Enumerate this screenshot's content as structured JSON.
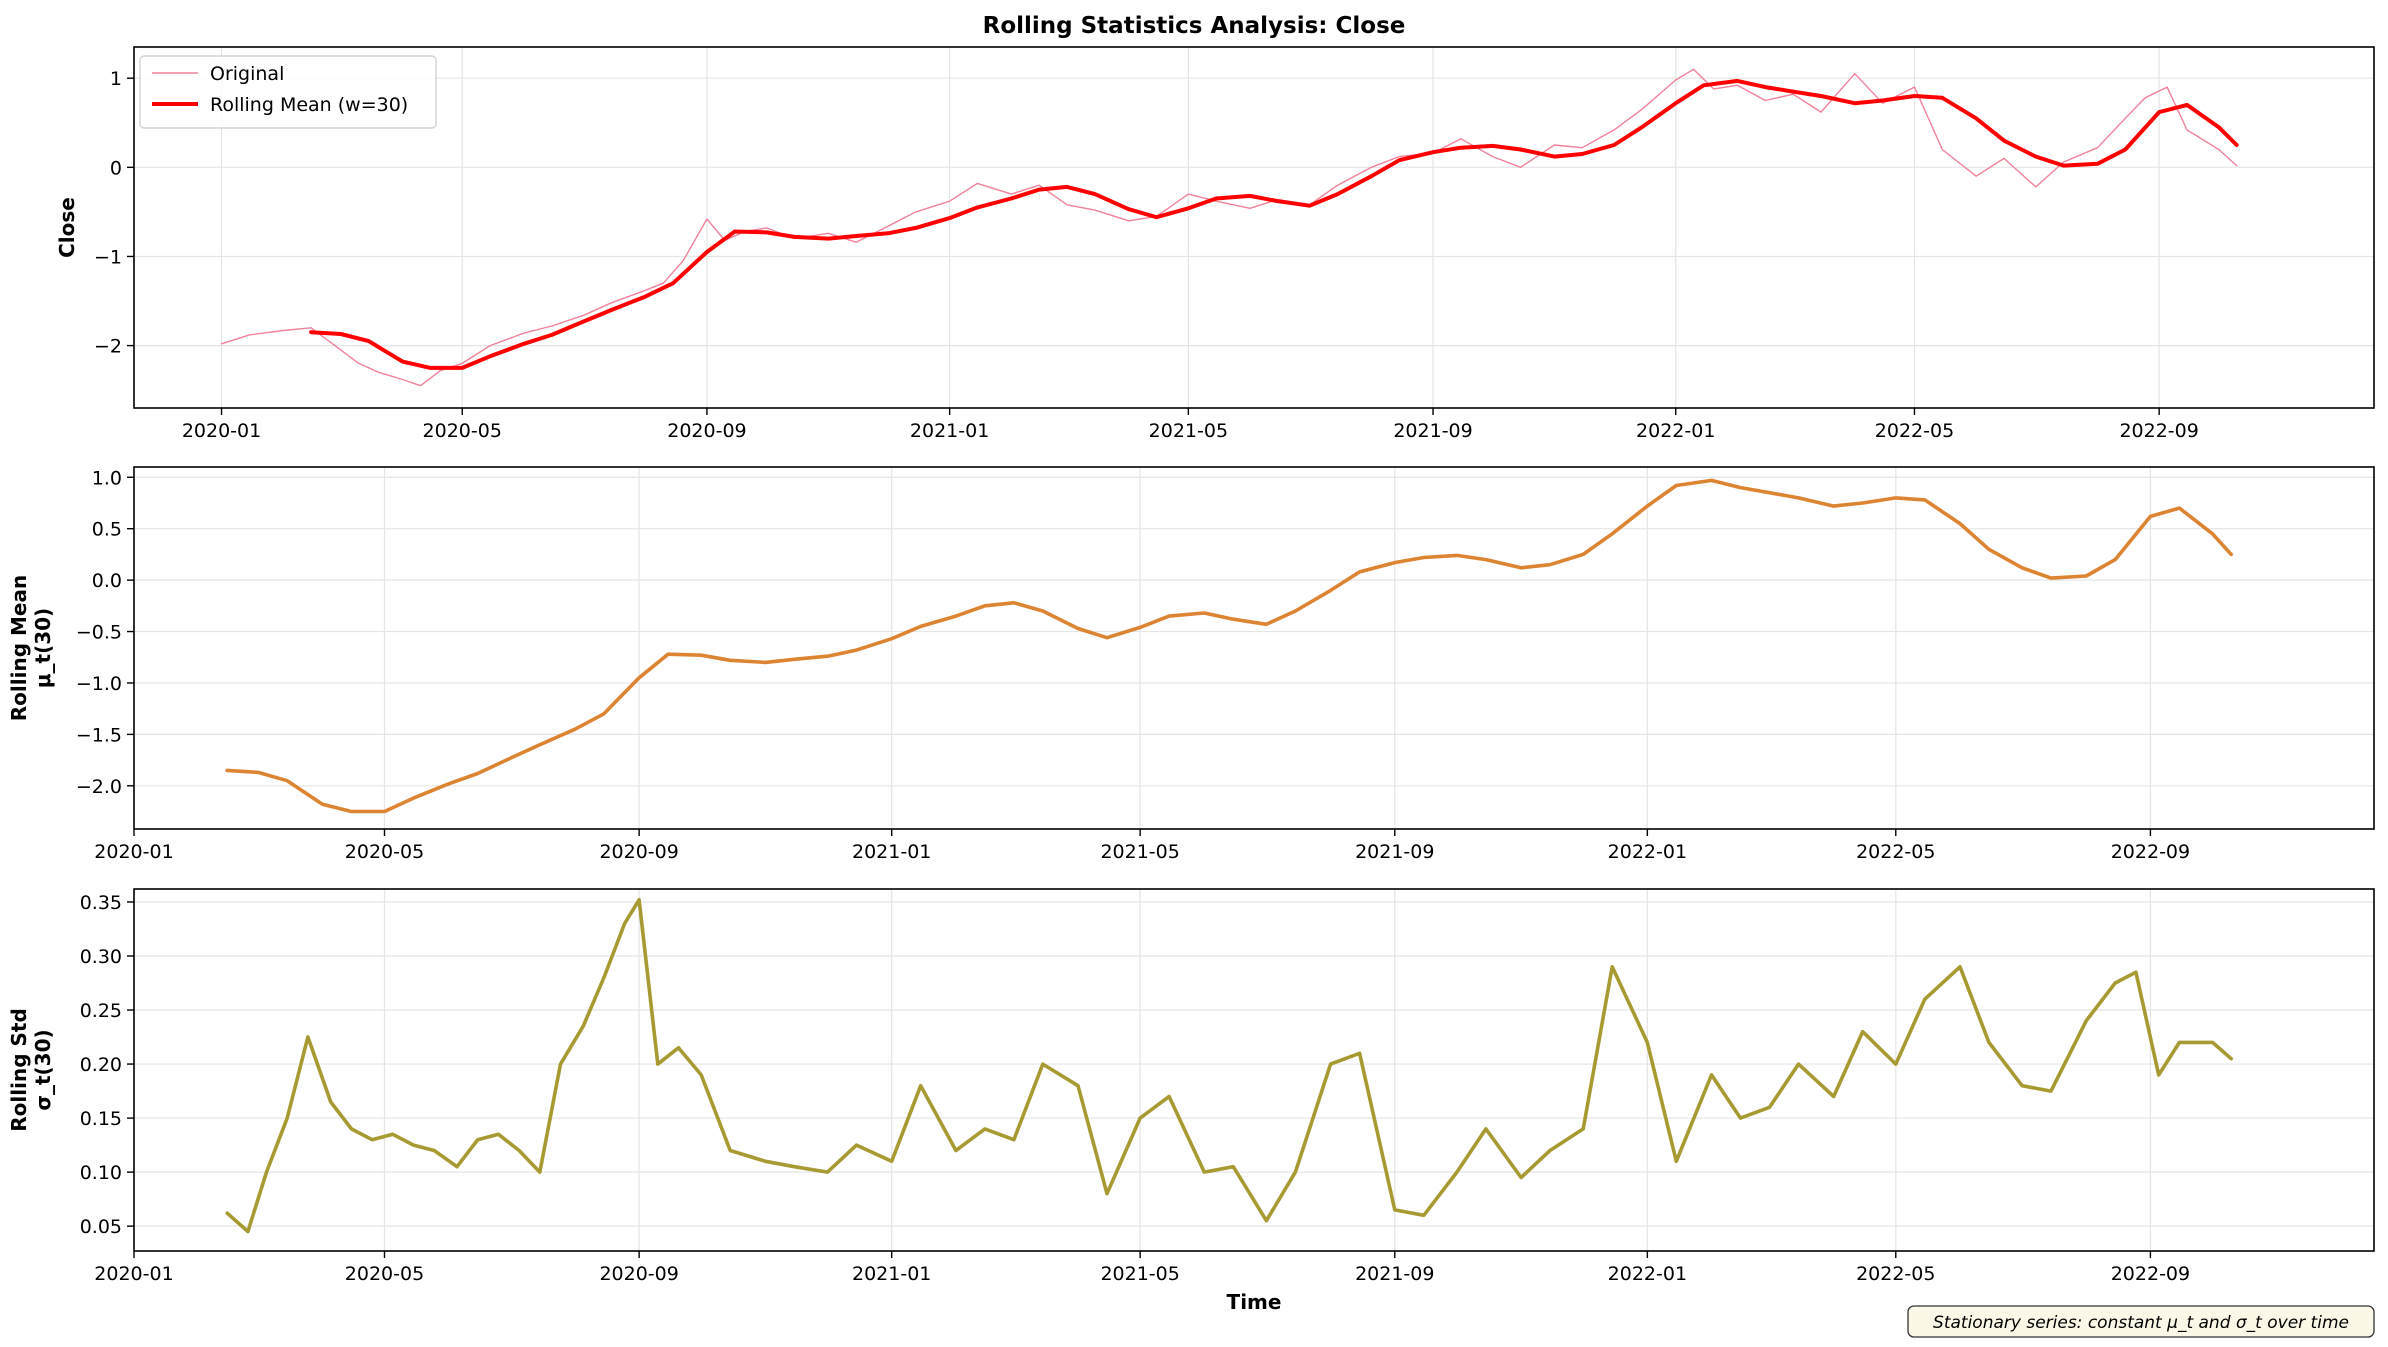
{
  "figure": {
    "title": "Rolling Statistics Analysis: Close",
    "note": "Stationary series: constant μ_t and σ_t over time",
    "colors": {
      "original": "#f0829a",
      "rolling_mean_top": "#ff0000",
      "rolling_mean_mid": "#dd8433",
      "rolling_std": "#a89a32",
      "grid": "#e5e5e5",
      "note_bg": "#fbf8e8"
    }
  },
  "chart_data": [
    {
      "type": "line",
      "ylabel": "Close",
      "xlabel": "",
      "xlim": [
        "2019-11-18",
        "2022-12-18"
      ],
      "ylim": [
        -2.7,
        1.35
      ],
      "xticks": [
        "2020-01",
        "2020-05",
        "2020-09",
        "2021-01",
        "2021-05",
        "2021-09",
        "2022-01",
        "2022-05",
        "2022-09"
      ],
      "yticks": [
        -2,
        -1,
        0,
        1
      ],
      "grid": true,
      "legend": "top-left",
      "series": [
        {
          "name": "Original",
          "x": [
            "2020-01-01",
            "2020-01-15",
            "2020-02-01",
            "2020-02-15",
            "2020-03-01",
            "2020-03-10",
            "2020-03-20",
            "2020-04-01",
            "2020-04-10",
            "2020-04-20",
            "2020-05-01",
            "2020-05-15",
            "2020-06-01",
            "2020-06-15",
            "2020-07-01",
            "2020-07-15",
            "2020-08-01",
            "2020-08-10",
            "2020-08-20",
            "2020-09-01",
            "2020-09-10",
            "2020-09-20",
            "2020-10-01",
            "2020-10-15",
            "2020-11-01",
            "2020-11-15",
            "2020-12-01",
            "2020-12-15",
            "2021-01-01",
            "2021-01-15",
            "2021-02-01",
            "2021-02-15",
            "2021-03-01",
            "2021-03-15",
            "2021-04-01",
            "2021-04-15",
            "2021-05-01",
            "2021-05-15",
            "2021-06-01",
            "2021-06-15",
            "2021-07-01",
            "2021-07-15",
            "2021-08-01",
            "2021-08-15",
            "2021-09-01",
            "2021-09-15",
            "2021-10-01",
            "2021-10-15",
            "2021-11-01",
            "2021-11-15",
            "2021-12-01",
            "2021-12-15",
            "2022-01-01",
            "2022-01-10",
            "2022-01-20",
            "2022-02-01",
            "2022-02-15",
            "2022-03-01",
            "2022-03-15",
            "2022-04-01",
            "2022-04-15",
            "2022-05-01",
            "2022-05-15",
            "2022-06-01",
            "2022-06-15",
            "2022-07-01",
            "2022-07-15",
            "2022-08-01",
            "2022-08-15",
            "2022-08-25",
            "2022-09-05",
            "2022-09-15",
            "2022-10-01",
            "2022-10-10"
          ],
          "values": [
            -1.98,
            -1.88,
            -1.83,
            -1.8,
            -2.05,
            -2.2,
            -2.3,
            -2.38,
            -2.45,
            -2.28,
            -2.2,
            -2.0,
            -1.86,
            -1.78,
            -1.66,
            -1.52,
            -1.38,
            -1.3,
            -1.05,
            -0.58,
            -0.82,
            -0.72,
            -0.68,
            -0.8,
            -0.74,
            -0.84,
            -0.66,
            -0.5,
            -0.38,
            -0.18,
            -0.3,
            -0.2,
            -0.42,
            -0.48,
            -0.6,
            -0.55,
            -0.3,
            -0.38,
            -0.46,
            -0.36,
            -0.42,
            -0.2,
            0.0,
            0.12,
            0.16,
            0.32,
            0.12,
            0.0,
            0.25,
            0.22,
            0.42,
            0.65,
            0.98,
            1.1,
            0.88,
            0.92,
            0.75,
            0.82,
            0.62,
            1.05,
            0.72,
            0.9,
            0.2,
            -0.1,
            0.1,
            -0.22,
            0.06,
            0.22,
            0.55,
            0.78,
            0.9,
            0.42,
            0.2,
            0.02
          ]
        },
        {
          "name": "Rolling Mean (w=30)",
          "x": [
            "2020-02-15",
            "2020-03-01",
            "2020-03-15",
            "2020-04-01",
            "2020-04-15",
            "2020-05-01",
            "2020-05-15",
            "2020-06-01",
            "2020-06-15",
            "2020-07-01",
            "2020-07-15",
            "2020-08-01",
            "2020-08-15",
            "2020-09-01",
            "2020-09-15",
            "2020-10-01",
            "2020-10-15",
            "2020-11-01",
            "2020-11-15",
            "2020-12-01",
            "2020-12-15",
            "2021-01-01",
            "2021-01-15",
            "2021-02-01",
            "2021-02-15",
            "2021-03-01",
            "2021-03-15",
            "2021-04-01",
            "2021-04-15",
            "2021-05-01",
            "2021-05-15",
            "2021-06-01",
            "2021-06-15",
            "2021-07-01",
            "2021-07-15",
            "2021-08-01",
            "2021-08-15",
            "2021-09-01",
            "2021-09-15",
            "2021-10-01",
            "2021-10-15",
            "2021-11-01",
            "2021-11-15",
            "2021-12-01",
            "2021-12-15",
            "2022-01-01",
            "2022-01-15",
            "2022-02-01",
            "2022-02-15",
            "2022-03-01",
            "2022-03-15",
            "2022-04-01",
            "2022-04-15",
            "2022-05-01",
            "2022-05-15",
            "2022-06-01",
            "2022-06-15",
            "2022-07-01",
            "2022-07-15",
            "2022-08-01",
            "2022-08-15",
            "2022-09-01",
            "2022-09-15",
            "2022-10-01",
            "2022-10-10"
          ],
          "values": [
            -1.85,
            -1.87,
            -1.95,
            -2.18,
            -2.25,
            -2.25,
            -2.12,
            -1.98,
            -1.88,
            -1.73,
            -1.6,
            -1.45,
            -1.3,
            -0.95,
            -0.72,
            -0.73,
            -0.78,
            -0.8,
            -0.77,
            -0.74,
            -0.68,
            -0.57,
            -0.45,
            -0.35,
            -0.25,
            -0.22,
            -0.3,
            -0.47,
            -0.56,
            -0.46,
            -0.35,
            -0.32,
            -0.38,
            -0.43,
            -0.3,
            -0.1,
            0.08,
            0.17,
            0.22,
            0.24,
            0.2,
            0.12,
            0.15,
            0.25,
            0.45,
            0.72,
            0.92,
            0.97,
            0.9,
            0.85,
            0.8,
            0.72,
            0.75,
            0.8,
            0.78,
            0.55,
            0.3,
            0.12,
            0.02,
            0.04,
            0.2,
            0.62,
            0.7,
            0.45,
            0.25
          ]
        }
      ]
    },
    {
      "type": "line",
      "ylabel": "Rolling Mean\nμ_t(30)",
      "xlabel": "",
      "xlim": [
        "2020-01-01",
        "2022-12-18"
      ],
      "ylim": [
        -2.42,
        1.1
      ],
      "xticks": [
        "2020-01",
        "2020-05",
        "2020-09",
        "2021-01",
        "2021-05",
        "2021-09",
        "2022-01",
        "2022-05",
        "2022-09"
      ],
      "yticks": [
        -2.0,
        -1.5,
        -1.0,
        -0.5,
        0.0,
        0.5,
        1.0
      ],
      "grid": true,
      "series": [
        {
          "x": [
            "2020-02-15",
            "2020-03-01",
            "2020-03-15",
            "2020-04-01",
            "2020-04-15",
            "2020-05-01",
            "2020-05-15",
            "2020-06-01",
            "2020-06-15",
            "2020-07-01",
            "2020-07-15",
            "2020-08-01",
            "2020-08-15",
            "2020-09-01",
            "2020-09-15",
            "2020-10-01",
            "2020-10-15",
            "2020-11-01",
            "2020-11-15",
            "2020-12-01",
            "2020-12-15",
            "2021-01-01",
            "2021-01-15",
            "2021-02-01",
            "2021-02-15",
            "2021-03-01",
            "2021-03-15",
            "2021-04-01",
            "2021-04-15",
            "2021-05-01",
            "2021-05-15",
            "2021-06-01",
            "2021-06-15",
            "2021-07-01",
            "2021-07-15",
            "2021-08-01",
            "2021-08-15",
            "2021-09-01",
            "2021-09-15",
            "2021-10-01",
            "2021-10-15",
            "2021-11-01",
            "2021-11-15",
            "2021-12-01",
            "2021-12-15",
            "2022-01-01",
            "2022-01-15",
            "2022-02-01",
            "2022-02-15",
            "2022-03-01",
            "2022-03-15",
            "2022-04-01",
            "2022-04-15",
            "2022-05-01",
            "2022-05-15",
            "2022-06-01",
            "2022-06-15",
            "2022-07-01",
            "2022-07-15",
            "2022-08-01",
            "2022-08-15",
            "2022-09-01",
            "2022-09-15",
            "2022-10-01",
            "2022-10-10"
          ],
          "values": [
            -1.85,
            -1.87,
            -1.95,
            -2.18,
            -2.25,
            -2.25,
            -2.12,
            -1.98,
            -1.88,
            -1.73,
            -1.6,
            -1.45,
            -1.3,
            -0.95,
            -0.72,
            -0.73,
            -0.78,
            -0.8,
            -0.77,
            -0.74,
            -0.68,
            -0.57,
            -0.45,
            -0.35,
            -0.25,
            -0.22,
            -0.3,
            -0.47,
            -0.56,
            -0.46,
            -0.35,
            -0.32,
            -0.38,
            -0.43,
            -0.3,
            -0.1,
            0.08,
            0.17,
            0.22,
            0.24,
            0.2,
            0.12,
            0.15,
            0.25,
            0.45,
            0.72,
            0.92,
            0.97,
            0.9,
            0.85,
            0.8,
            0.72,
            0.75,
            0.8,
            0.78,
            0.55,
            0.3,
            0.12,
            0.02,
            0.04,
            0.2,
            0.62,
            0.7,
            0.45,
            0.25
          ]
        }
      ]
    },
    {
      "type": "line",
      "ylabel": "Rolling Std\nσ_t(30)",
      "xlabel": "Time",
      "xlim": [
        "2020-01-01",
        "2022-12-18"
      ],
      "ylim": [
        0.027,
        0.362
      ],
      "xticks": [
        "2020-01",
        "2020-05",
        "2020-09",
        "2021-01",
        "2021-05",
        "2021-09",
        "2022-01",
        "2022-05",
        "2022-09"
      ],
      "yticks": [
        0.05,
        0.1,
        0.15,
        0.2,
        0.25,
        0.3,
        0.35
      ],
      "grid": true,
      "series": [
        {
          "x": [
            "2020-02-15",
            "2020-02-25",
            "2020-03-05",
            "2020-03-15",
            "2020-03-25",
            "2020-04-05",
            "2020-04-15",
            "2020-04-25",
            "2020-05-05",
            "2020-05-15",
            "2020-05-25",
            "2020-06-05",
            "2020-06-15",
            "2020-06-25",
            "2020-07-05",
            "2020-07-15",
            "2020-07-25",
            "2020-08-05",
            "2020-08-15",
            "2020-08-25",
            "2020-09-01",
            "2020-09-10",
            "2020-09-20",
            "2020-10-01",
            "2020-10-15",
            "2020-11-01",
            "2020-11-15",
            "2020-12-01",
            "2020-12-15",
            "2021-01-01",
            "2021-01-15",
            "2021-02-01",
            "2021-02-15",
            "2021-03-01",
            "2021-03-15",
            "2021-04-01",
            "2021-04-15",
            "2021-05-01",
            "2021-05-15",
            "2021-06-01",
            "2021-06-15",
            "2021-07-01",
            "2021-07-15",
            "2021-08-01",
            "2021-08-15",
            "2021-09-01",
            "2021-09-15",
            "2021-10-01",
            "2021-10-15",
            "2021-11-01",
            "2021-11-15",
            "2021-12-01",
            "2021-12-15",
            "2022-01-01",
            "2022-01-15",
            "2022-02-01",
            "2022-02-15",
            "2022-03-01",
            "2022-03-15",
            "2022-04-01",
            "2022-04-15",
            "2022-05-01",
            "2022-05-15",
            "2022-06-01",
            "2022-06-15",
            "2022-07-01",
            "2022-07-15",
            "2022-08-01",
            "2022-08-15",
            "2022-08-25",
            "2022-09-05",
            "2022-09-15",
            "2022-10-01",
            "2022-10-10"
          ],
          "values": [
            0.062,
            0.045,
            0.1,
            0.15,
            0.225,
            0.165,
            0.14,
            0.13,
            0.135,
            0.125,
            0.12,
            0.105,
            0.13,
            0.135,
            0.12,
            0.1,
            0.2,
            0.235,
            0.28,
            0.33,
            0.352,
            0.2,
            0.215,
            0.19,
            0.12,
            0.11,
            0.105,
            0.1,
            0.125,
            0.11,
            0.18,
            0.12,
            0.14,
            0.13,
            0.2,
            0.18,
            0.08,
            0.15,
            0.17,
            0.1,
            0.105,
            0.055,
            0.1,
            0.2,
            0.21,
            0.065,
            0.06,
            0.1,
            0.14,
            0.095,
            0.12,
            0.14,
            0.29,
            0.22,
            0.11,
            0.19,
            0.15,
            0.16,
            0.2,
            0.17,
            0.23,
            0.2,
            0.26,
            0.29,
            0.22,
            0.18,
            0.175,
            0.24,
            0.275,
            0.285,
            0.19,
            0.22,
            0.22,
            0.205
          ]
        }
      ]
    }
  ]
}
